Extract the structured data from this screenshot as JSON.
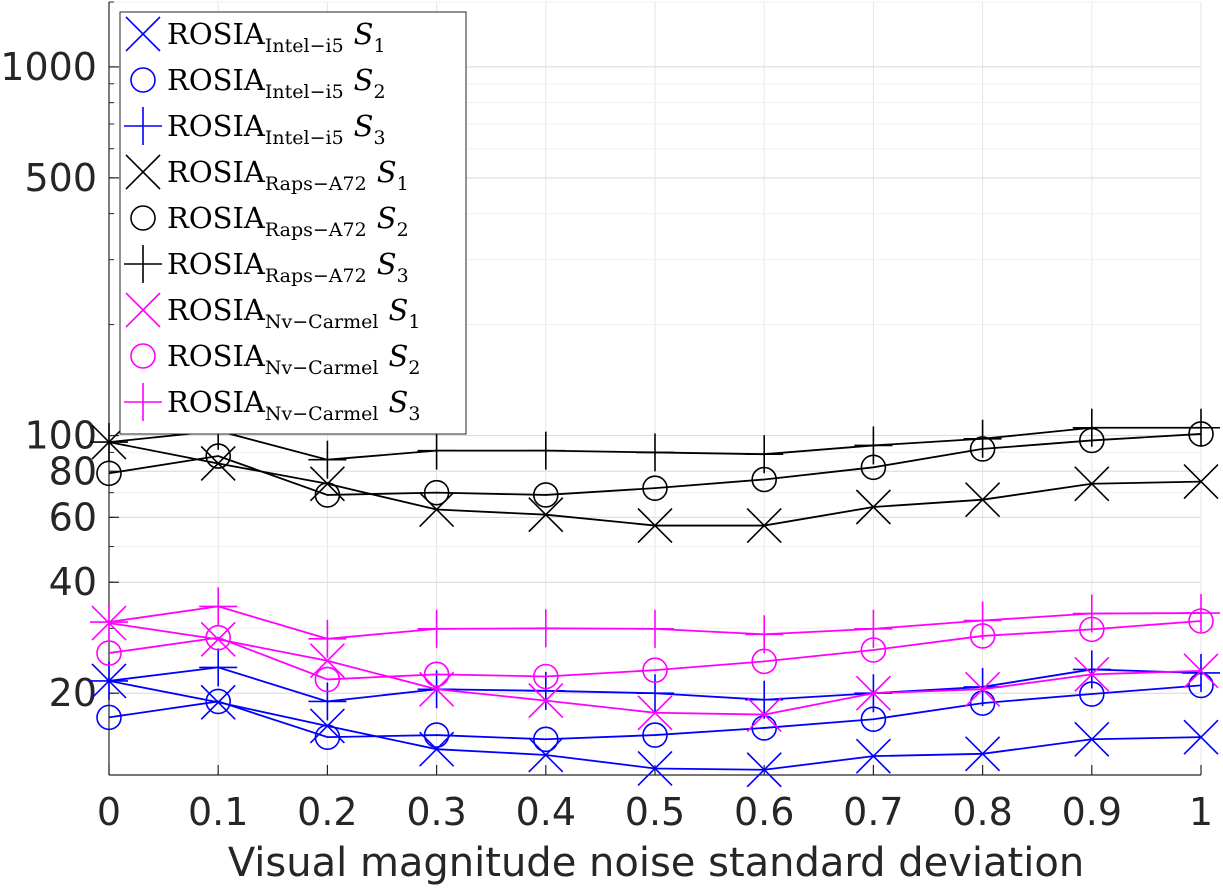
{
  "chart_data": {
    "type": "line",
    "title": "",
    "xlabel": "Visual magnitude noise standard deviation",
    "ylabel": "",
    "yscale": "log",
    "xlim": [
      0,
      1
    ],
    "ylim": [
      12,
      1500
    ],
    "grid": true,
    "legend_position": "top-left",
    "x": [
      0,
      0.1,
      0.2,
      0.3,
      0.4,
      0.5,
      0.6,
      0.7,
      0.8,
      0.9,
      1
    ],
    "x_tick_labels": [
      "0",
      "0.1",
      "0.2",
      "0.3",
      "0.4",
      "0.5",
      "0.6",
      "0.7",
      "0.8",
      "0.9",
      "1"
    ],
    "y_ticks": [
      {
        "value": 20,
        "label": "20"
      },
      {
        "value": 40,
        "label": "40"
      },
      {
        "value": 60,
        "label": "60"
      },
      {
        "value": 80,
        "label": "80"
      },
      {
        "value": 100,
        "label": "100"
      },
      {
        "value": 500,
        "label": "500"
      },
      {
        "value": 1000,
        "label": "1000"
      }
    ],
    "series": [
      {
        "name": "ROSIA",
        "sub": "Intel−i5",
        "set": "S",
        "set_index": "1",
        "color": "#0000ff",
        "marker": "x",
        "values": [
          21.6,
          18.9,
          16.3,
          14.1,
          13.6,
          12.5,
          12.4,
          13.5,
          13.7,
          15.0,
          15.2
        ]
      },
      {
        "name": "ROSIA",
        "sub": "Intel−i5",
        "set": "S",
        "set_index": "2",
        "color": "#0000ff",
        "marker": "o",
        "values": [
          17.2,
          19.0,
          15.2,
          15.4,
          15.0,
          15.4,
          16.1,
          17.0,
          18.8,
          19.9,
          21.0
        ]
      },
      {
        "name": "ROSIA",
        "sub": "Intel−i5",
        "set": "S",
        "set_index": "3",
        "color": "#0000ff",
        "marker": "+",
        "values": [
          21.6,
          23.5,
          19.0,
          20.5,
          20.3,
          20.0,
          19.2,
          20.0,
          20.8,
          23.2,
          22.7
        ]
      },
      {
        "name": "ROSIA",
        "sub": "Raps−A72",
        "set": "S",
        "set_index": "1",
        "color": "#000000",
        "marker": "x",
        "values": [
          96,
          84,
          74,
          63,
          61,
          57,
          57,
          64,
          67,
          74,
          75
        ]
      },
      {
        "name": "ROSIA",
        "sub": "Raps−A72",
        "set": "S",
        "set_index": "2",
        "color": "#000000",
        "marker": "o",
        "values": [
          79,
          88,
          69,
          70,
          69,
          72,
          76,
          82,
          92,
          97,
          101
        ]
      },
      {
        "name": "ROSIA",
        "sub": "Raps−A72",
        "set": "S",
        "set_index": "3",
        "color": "#000000",
        "marker": "+",
        "values": [
          96,
          103,
          86,
          91,
          91,
          90,
          89,
          94,
          98,
          105,
          105
        ]
      },
      {
        "name": "ROSIA",
        "sub": "Nv−Carmel",
        "set": "S",
        "set_index": "1",
        "color": "#ff00ff",
        "marker": "x",
        "values": [
          31,
          28,
          24.5,
          20.5,
          19.1,
          17.7,
          17.5,
          20.0,
          20.5,
          22.5,
          23.0
        ]
      },
      {
        "name": "ROSIA",
        "sub": "Nv−Carmel",
        "set": "S",
        "set_index": "2",
        "color": "#ff00ff",
        "marker": "o",
        "values": [
          25.7,
          28.3,
          21.8,
          22.5,
          22.2,
          23.1,
          24.4,
          26.2,
          28.6,
          29.8,
          31.4
        ]
      },
      {
        "name": "ROSIA",
        "sub": "Nv−Carmel",
        "set": "S",
        "set_index": "3",
        "color": "#ff00ff",
        "marker": "+",
        "values": [
          31.2,
          34.4,
          28.1,
          29.9,
          30.0,
          29.9,
          28.9,
          29.9,
          31.5,
          32.9,
          33.0
        ]
      }
    ]
  }
}
